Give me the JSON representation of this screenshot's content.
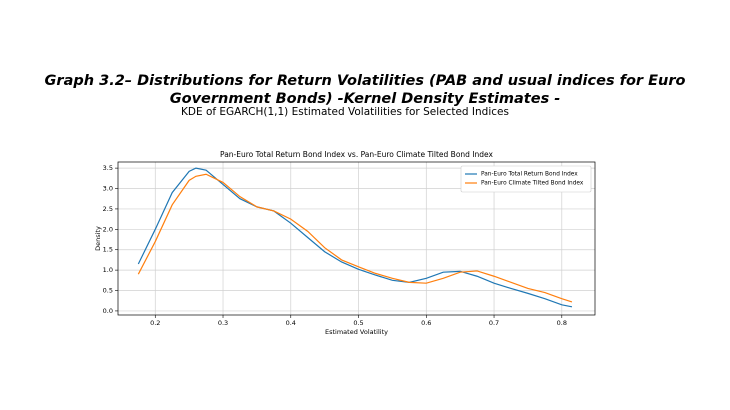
{
  "header": {
    "title": [
      "Graph 3.2– Distributions for Return Volatilities (PAB and usual indices for Euro",
      "Government Bonds) -Kernel Density Estimates -"
    ],
    "subtitle": "KDE of EGARCH(1,1) Estimated Volatilities for Selected Indices"
  },
  "chart_data": {
    "type": "line",
    "title": "Pan-Euro Total Return Bond Index vs. Pan-Euro Climate Tilted Bond Index",
    "x_label": "Estimated Volatility",
    "y_label": "Density",
    "x": [
      0.175,
      0.2,
      0.225,
      0.25,
      0.26,
      0.275,
      0.3,
      0.325,
      0.35,
      0.375,
      0.4,
      0.425,
      0.45,
      0.475,
      0.5,
      0.525,
      0.55,
      0.575,
      0.6,
      0.625,
      0.65,
      0.675,
      0.7,
      0.725,
      0.75,
      0.775,
      0.8,
      0.815
    ],
    "series": [
      {
        "name": "Pan-Euro Total Return Bond Index",
        "color": "#1f77b4",
        "values": [
          1.15,
          2.0,
          2.9,
          3.42,
          3.5,
          3.45,
          3.1,
          2.75,
          2.55,
          2.45,
          2.15,
          1.8,
          1.45,
          1.2,
          1.02,
          0.88,
          0.75,
          0.7,
          0.8,
          0.95,
          0.97,
          0.85,
          0.68,
          0.55,
          0.43,
          0.3,
          0.15,
          0.1
        ]
      },
      {
        "name": "Pan-Euro Climate Tilted Bond Index",
        "color": "#ff7f0e",
        "values": [
          0.9,
          1.7,
          2.6,
          3.2,
          3.3,
          3.35,
          3.15,
          2.8,
          2.55,
          2.45,
          2.25,
          1.95,
          1.55,
          1.25,
          1.08,
          0.92,
          0.8,
          0.7,
          0.68,
          0.8,
          0.95,
          0.98,
          0.85,
          0.7,
          0.55,
          0.45,
          0.3,
          0.22
        ]
      }
    ],
    "xlim": [
      0.145,
      0.849
    ],
    "ylim": [
      -0.1,
      3.65
    ],
    "xticks": [
      0.2,
      0.3,
      0.4,
      0.5,
      0.6,
      0.7,
      0.8
    ],
    "yticks": [
      {
        "value": 0,
        "label": "0.0"
      },
      0.5,
      {
        "value": 1,
        "label": "1.0"
      },
      1.5,
      {
        "value": 2,
        "label": "2.0"
      },
      2.5,
      {
        "value": 3,
        "label": "3.0"
      },
      3.5
    ],
    "grid": true,
    "legend": "upper right"
  }
}
